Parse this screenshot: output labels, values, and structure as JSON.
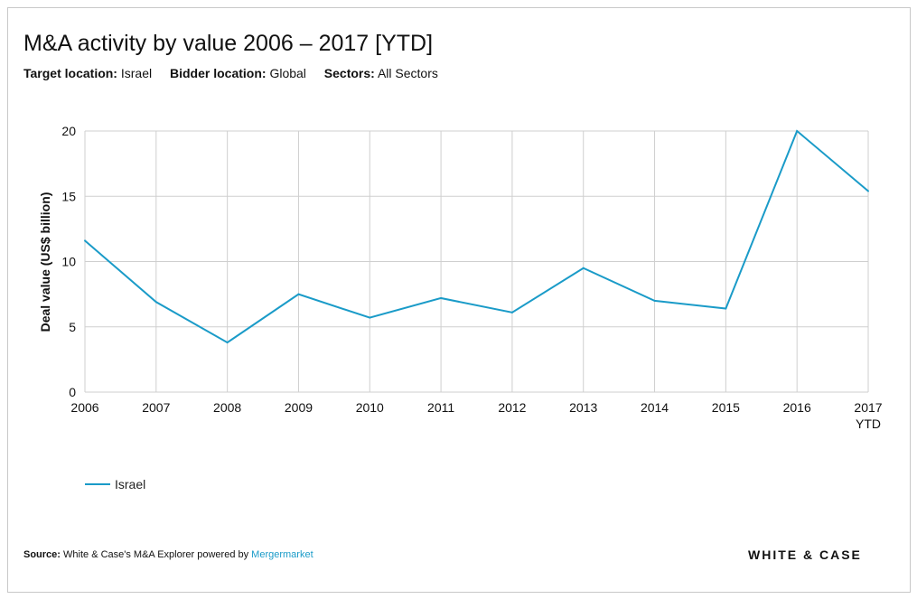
{
  "title": "M&A activity by value 2006 – 2017 [YTD]",
  "filters": [
    {
      "label": "Target location:",
      "value": "Israel"
    },
    {
      "label": "Bidder location:",
      "value": "Global"
    },
    {
      "label": "Sectors:",
      "value": "All Sectors"
    }
  ],
  "source": {
    "label": "Source:",
    "text": "White & Case's M&A Explorer powered by",
    "link": "Mergermarket"
  },
  "brand": "WHITE & CASE",
  "chart_data": {
    "type": "line",
    "title": "M&A activity by value 2006 – 2017 [YTD]",
    "categories": [
      "2006",
      "2007",
      "2008",
      "2009",
      "2010",
      "2011",
      "2012",
      "2013",
      "2014",
      "2015",
      "2016",
      "2017"
    ],
    "category_sublabels": {
      "2017": "YTD"
    },
    "ylabel": "Deal value (US$ billion)",
    "xlabel": "",
    "ylim": [
      0,
      20
    ],
    "yticks": [
      0,
      5,
      10,
      15,
      20
    ],
    "grid": true,
    "legend_position": "bottom-left",
    "series": [
      {
        "name": "Israel",
        "color": "#1a9bc8",
        "values": [
          11.6,
          6.9,
          3.8,
          7.5,
          5.7,
          7.2,
          6.1,
          9.5,
          7.0,
          6.4,
          20.0,
          15.4
        ]
      }
    ]
  }
}
